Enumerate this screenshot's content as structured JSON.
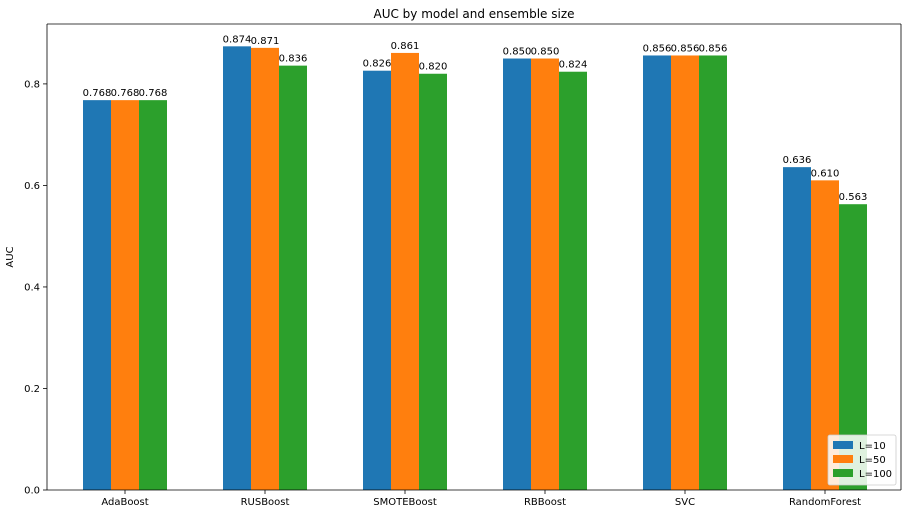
{
  "chart_data": {
    "type": "bar",
    "title": "AUC by model and ensemble size",
    "xlabel": "",
    "ylabel": "AUC",
    "ylim": [
      0,
      0.918
    ],
    "yticks": [
      0.0,
      0.2,
      0.4,
      0.6,
      0.8
    ],
    "ytick_labels": [
      "0.0",
      "0.2",
      "0.4",
      "0.6",
      "0.8"
    ],
    "grid": false,
    "legend_position": "bottom-right",
    "categories": [
      "AdaBoost",
      "RUSBoost",
      "SMOTEBoost",
      "RBBoost",
      "SVC",
      "RandomForest"
    ],
    "series": [
      {
        "name": "L=10",
        "color": "#1f77b4",
        "values": [
          0.768,
          0.874,
          0.826,
          0.85,
          0.856,
          0.636
        ],
        "labels": [
          "0.768",
          "0.874",
          "0.826",
          "0.850",
          "0.856",
          "0.636"
        ]
      },
      {
        "name": "L=50",
        "color": "#ff7f0e",
        "values": [
          0.768,
          0.871,
          0.861,
          0.85,
          0.856,
          0.61
        ],
        "labels": [
          "0.768",
          "0.871",
          "0.861",
          "0.850",
          "0.856",
          "0.610"
        ]
      },
      {
        "name": "L=100",
        "color": "#2ca02c",
        "values": [
          0.768,
          0.836,
          0.82,
          0.824,
          0.856,
          0.563
        ],
        "labels": [
          "0.768",
          "0.836",
          "0.820",
          "0.824",
          "0.856",
          "0.563"
        ]
      }
    ]
  }
}
